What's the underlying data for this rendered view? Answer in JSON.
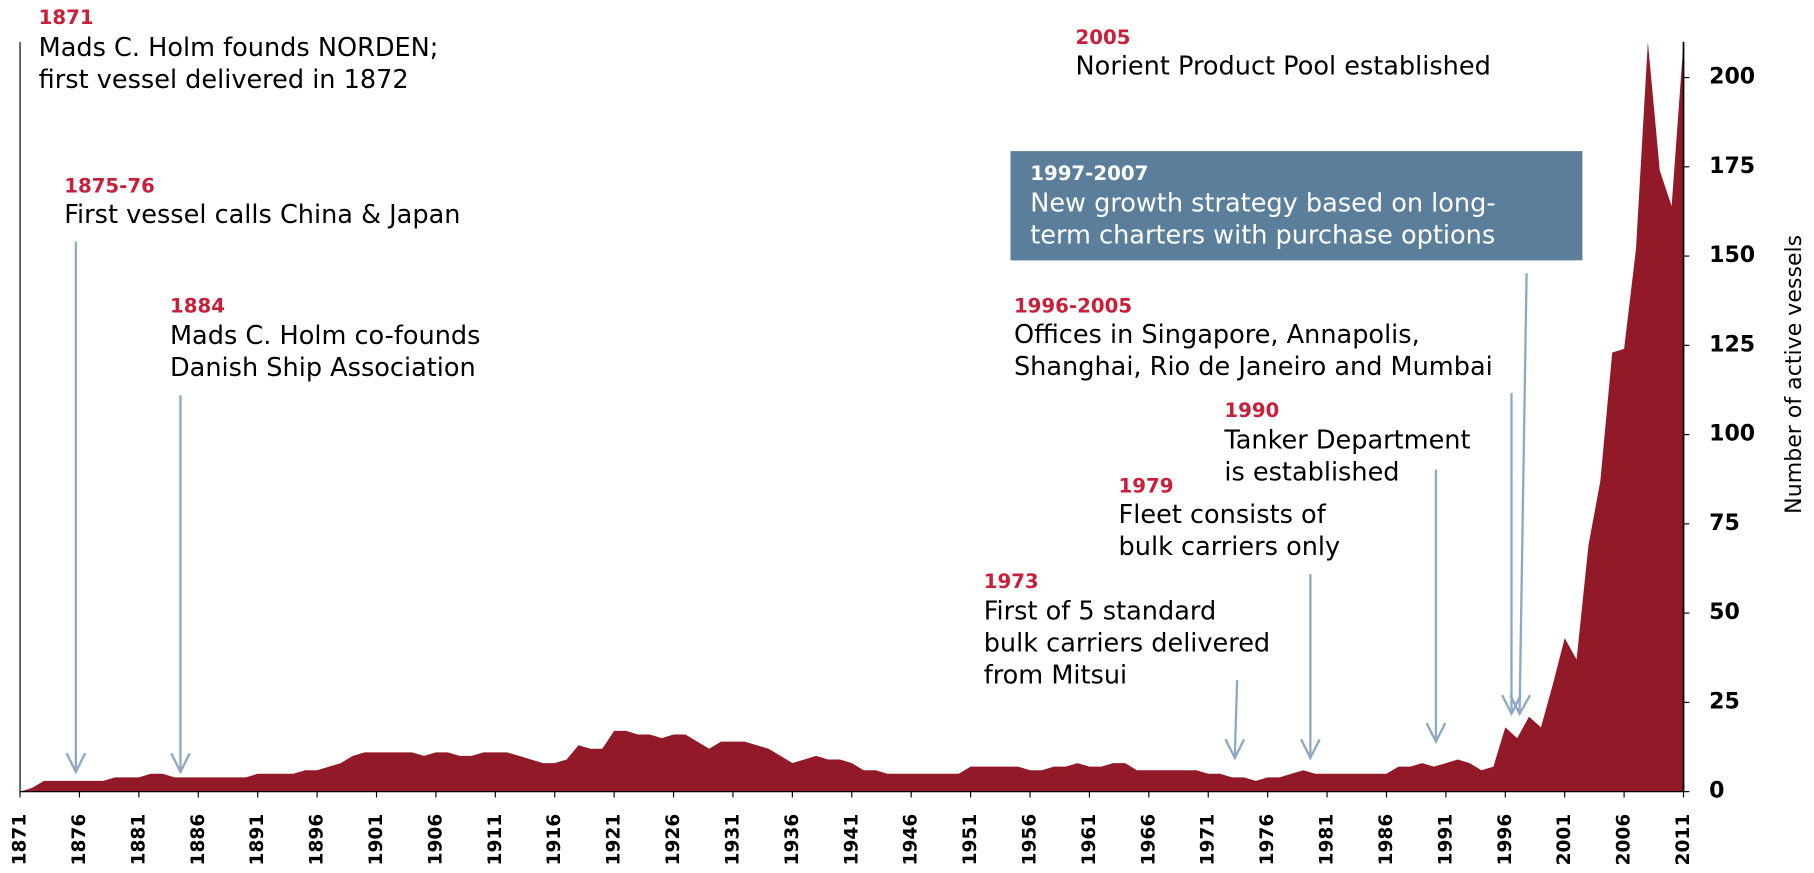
{
  "chart_data": {
    "type": "area",
    "y_axis_label": "Number of active vessels",
    "x": [
      1871,
      1872,
      1873,
      1874,
      1875,
      1876,
      1877,
      1878,
      1879,
      1880,
      1881,
      1882,
      1883,
      1884,
      1885,
      1886,
      1887,
      1888,
      1889,
      1890,
      1891,
      1892,
      1893,
      1894,
      1895,
      1896,
      1897,
      1898,
      1899,
      1900,
      1901,
      1902,
      1903,
      1904,
      1905,
      1906,
      1907,
      1908,
      1909,
      1910,
      1911,
      1912,
      1913,
      1914,
      1915,
      1916,
      1917,
      1918,
      1919,
      1920,
      1921,
      1922,
      1923,
      1924,
      1925,
      1926,
      1927,
      1928,
      1929,
      1930,
      1931,
      1932,
      1933,
      1934,
      1935,
      1936,
      1937,
      1938,
      1939,
      1940,
      1941,
      1942,
      1943,
      1944,
      1945,
      1946,
      1947,
      1948,
      1949,
      1950,
      1951,
      1952,
      1953,
      1954,
      1955,
      1956,
      1957,
      1958,
      1959,
      1960,
      1961,
      1962,
      1963,
      1964,
      1965,
      1966,
      1967,
      1968,
      1969,
      1970,
      1971,
      1972,
      1973,
      1974,
      1975,
      1976,
      1977,
      1978,
      1979,
      1980,
      1981,
      1982,
      1983,
      1984,
      1985,
      1986,
      1987,
      1988,
      1989,
      1990,
      1991,
      1992,
      1993,
      1994,
      1995,
      1996,
      1997,
      1998,
      1999,
      2000,
      2001,
      2002,
      2003,
      2004,
      2005,
      2006,
      2007,
      2008,
      2009,
      2010,
      2011
    ],
    "series": [
      {
        "name": "Active vessels",
        "color": "#921a28",
        "values": [
          0,
          1,
          3,
          3,
          3,
          3,
          3,
          3,
          4,
          4,
          4,
          5,
          5,
          4,
          4,
          4,
          4,
          4,
          4,
          4,
          5,
          5,
          5,
          5,
          6,
          6,
          7,
          8,
          10,
          11,
          11,
          11,
          11,
          11,
          10,
          11,
          11,
          10,
          10,
          11,
          11,
          11,
          10,
          9,
          8,
          8,
          9,
          13,
          12,
          12,
          17,
          17,
          16,
          16,
          15,
          16,
          16,
          14,
          12,
          14,
          14,
          14,
          13,
          12,
          10,
          8,
          9,
          10,
          9,
          9,
          8,
          6,
          6,
          5,
          5,
          5,
          5,
          5,
          5,
          5,
          7,
          7,
          7,
          7,
          7,
          6,
          6,
          7,
          7,
          8,
          7,
          7,
          8,
          8,
          6,
          6,
          6,
          6,
          6,
          6,
          5,
          5,
          4,
          4,
          3,
          4,
          4,
          5,
          6,
          5,
          5,
          5,
          5,
          5,
          5,
          5,
          7,
          7,
          8,
          7,
          8,
          9,
          8,
          6,
          7,
          18,
          15,
          21,
          18,
          30,
          43,
          37,
          69,
          87,
          123,
          124,
          152,
          210,
          174,
          164,
          210
        ]
      }
    ],
    "xlim": [
      1871,
      2011
    ],
    "xticks": [
      1871,
      1876,
      1881,
      1886,
      1891,
      1896,
      1901,
      1906,
      1911,
      1916,
      1921,
      1926,
      1931,
      1936,
      1941,
      1946,
      1951,
      1956,
      1961,
      1966,
      1971,
      1976,
      1981,
      1986,
      1991,
      1996,
      2001,
      2006,
      2011
    ],
    "ylim": [
      0,
      210
    ],
    "yticks": [
      0,
      25,
      50,
      75,
      100,
      125,
      150,
      175,
      200
    ],
    "annotations": [
      {
        "year": "1871",
        "lines": [
          "Mads C. Holm founds NORDEN;",
          "first vessel  delivered in 1872"
        ]
      },
      {
        "year": "1875-76",
        "lines": [
          "First vessel calls China & Japan"
        ]
      },
      {
        "year": "1884",
        "lines": [
          "Mads C. Holm co-founds",
          "Danish Ship Association"
        ]
      },
      {
        "year": "2005",
        "lines": [
          "Norient Product Pool established"
        ]
      },
      {
        "year": "1997-2007",
        "lines": [
          "New growth strategy based on long-",
          "term charters with purchase options"
        ]
      },
      {
        "year": "1996-2005",
        "lines": [
          "Offices in Singapore, Annapolis,",
          "Shanghai, Rio de Janeiro and Mumbai"
        ]
      },
      {
        "year": "1990",
        "lines": [
          "Tanker Department",
          "is established"
        ]
      },
      {
        "year": "1979",
        "lines": [
          "Fleet consists of",
          "bulk carriers only"
        ]
      },
      {
        "year": "1973",
        "lines": [
          "First of 5 standard",
          "bulk carriers delivered",
          "from Mitsui"
        ]
      }
    ]
  }
}
